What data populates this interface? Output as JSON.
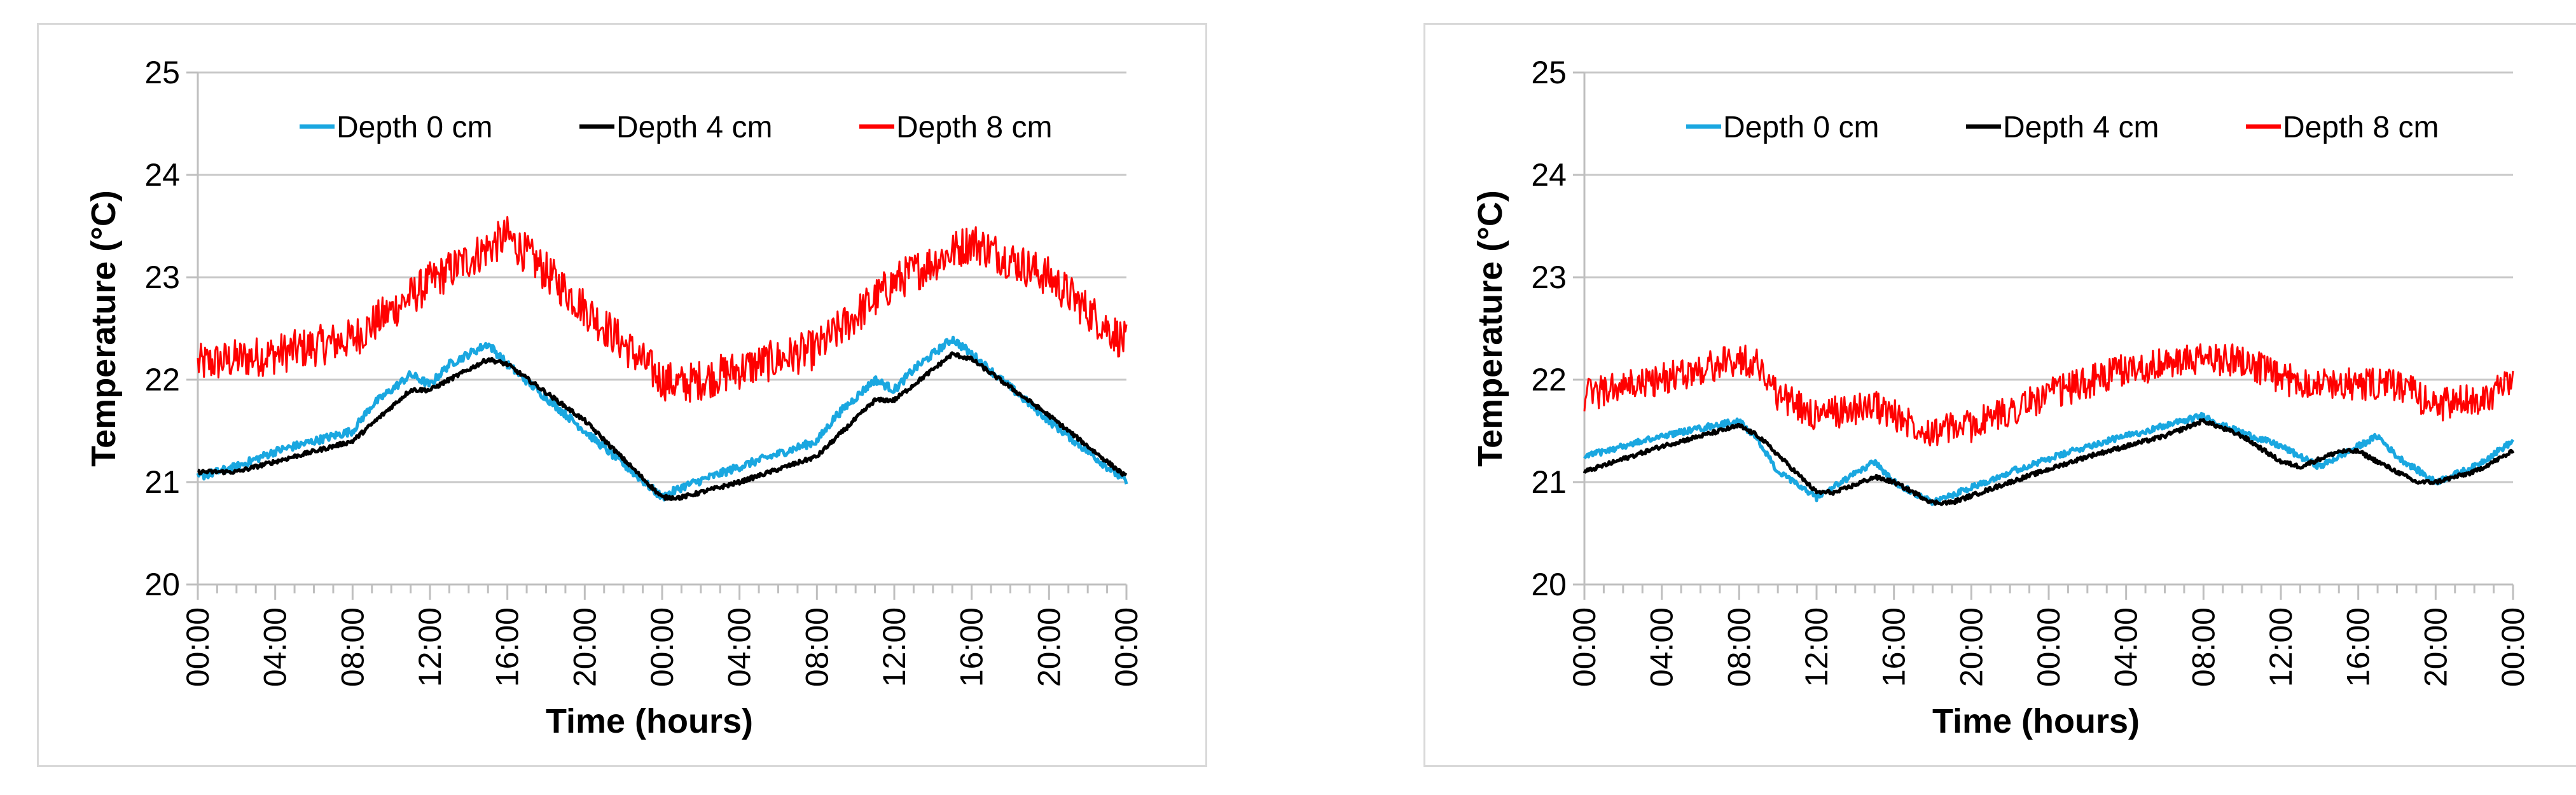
{
  "chart_data": [
    {
      "type": "line",
      "title": "",
      "xlabel": "Time (hours)",
      "ylabel": "Temperature (°C)",
      "ylim": [
        20,
        25
      ],
      "yticks": [
        "20",
        "21",
        "22",
        "23",
        "24",
        "25"
      ],
      "xlim": [
        0,
        48
      ],
      "xticks": [
        "00:00",
        "04:00",
        "08:00",
        "12:00",
        "16:00",
        "20:00",
        "00:00",
        "04:00",
        "08:00",
        "12:00",
        "16:00",
        "20:00",
        "00:00"
      ],
      "grid": true,
      "legend_position": "top",
      "series": [
        {
          "name": "Depth 0 cm",
          "color": "#1aa7e0",
          "noise": 0.04,
          "points": [
            [
              0,
              21.05
            ],
            [
              2,
              21.15
            ],
            [
              4,
              21.3
            ],
            [
              8,
              21.5
            ],
            [
              9,
              21.75
            ],
            [
              11,
              22.05
            ],
            [
              12,
              21.95
            ],
            [
              13,
              22.15
            ],
            [
              15,
              22.35
            ],
            [
              16,
              22.15
            ],
            [
              20,
              21.5
            ],
            [
              24,
              20.85
            ],
            [
              25,
              20.95
            ],
            [
              28,
              21.15
            ],
            [
              32,
              21.4
            ],
            [
              33,
              21.65
            ],
            [
              35,
              22.0
            ],
            [
              36,
              21.9
            ],
            [
              37,
              22.1
            ],
            [
              39,
              22.4
            ],
            [
              40,
              22.25
            ],
            [
              44,
              21.6
            ],
            [
              48,
              21.0
            ]
          ]
        },
        {
          "name": "Depth 4 cm",
          "color": "#000000",
          "noise": 0.02,
          "points": [
            [
              0,
              21.1
            ],
            [
              2,
              21.1
            ],
            [
              4,
              21.2
            ],
            [
              8,
              21.4
            ],
            [
              11,
              21.9
            ],
            [
              12,
              21.9
            ],
            [
              15,
              22.2
            ],
            [
              16,
              22.15
            ],
            [
              20,
              21.6
            ],
            [
              24,
              20.85
            ],
            [
              25,
              20.85
            ],
            [
              28,
              21.0
            ],
            [
              32,
              21.25
            ],
            [
              35,
              21.8
            ],
            [
              36,
              21.8
            ],
            [
              39,
              22.25
            ],
            [
              40,
              22.2
            ],
            [
              44,
              21.65
            ],
            [
              48,
              21.05
            ]
          ]
        },
        {
          "name": "Depth 8 cm",
          "color": "#ff0000",
          "noise": 0.2,
          "points": [
            [
              0,
              22.15
            ],
            [
              4,
              22.25
            ],
            [
              8,
              22.4
            ],
            [
              12,
              22.95
            ],
            [
              16,
              23.4
            ],
            [
              20,
              22.7
            ],
            [
              24,
              22.0
            ],
            [
              25,
              21.95
            ],
            [
              28,
              22.1
            ],
            [
              32,
              22.3
            ],
            [
              36,
              22.95
            ],
            [
              40,
              23.35
            ],
            [
              44,
              23.0
            ],
            [
              48,
              22.35
            ]
          ]
        }
      ]
    },
    {
      "type": "line",
      "title": "",
      "xlabel": "Time (hours)",
      "ylabel": "Temperature (°C)",
      "ylim": [
        20,
        25
      ],
      "yticks": [
        "20",
        "21",
        "22",
        "23",
        "24",
        "25"
      ],
      "xlim": [
        0,
        48
      ],
      "xticks": [
        "00:00",
        "04:00",
        "08:00",
        "12:00",
        "16:00",
        "20:00",
        "00:00",
        "04:00",
        "08:00",
        "12:00",
        "16:00",
        "20:00",
        "00:00"
      ],
      "grid": true,
      "legend_position": "top",
      "series": [
        {
          "name": "Depth 0 cm",
          "color": "#1aa7e0",
          "noise": 0.03,
          "points": [
            [
              0,
              21.25
            ],
            [
              4,
              21.45
            ],
            [
              8,
              21.6
            ],
            [
              9,
              21.4
            ],
            [
              10,
              21.1
            ],
            [
              12,
              20.85
            ],
            [
              15,
              21.2
            ],
            [
              16,
              21.0
            ],
            [
              18,
              20.8
            ],
            [
              22,
              21.1
            ],
            [
              26,
              21.35
            ],
            [
              30,
              21.55
            ],
            [
              32,
              21.65
            ],
            [
              33,
              21.55
            ],
            [
              36,
              21.35
            ],
            [
              38,
              21.15
            ],
            [
              40,
              21.35
            ],
            [
              41,
              21.45
            ],
            [
              42,
              21.25
            ],
            [
              44,
              21.0
            ],
            [
              46,
              21.15
            ],
            [
              48,
              21.4
            ]
          ]
        },
        {
          "name": "Depth 4 cm",
          "color": "#000000",
          "noise": 0.02,
          "points": [
            [
              0,
              21.1
            ],
            [
              4,
              21.35
            ],
            [
              8,
              21.55
            ],
            [
              9,
              21.45
            ],
            [
              12,
              20.9
            ],
            [
              13,
              20.9
            ],
            [
              15,
              21.05
            ],
            [
              16,
              21.0
            ],
            [
              18,
              20.8
            ],
            [
              19,
              20.8
            ],
            [
              22,
              21.0
            ],
            [
              26,
              21.25
            ],
            [
              30,
              21.45
            ],
            [
              32,
              21.6
            ],
            [
              34,
              21.45
            ],
            [
              36,
              21.2
            ],
            [
              37,
              21.15
            ],
            [
              39,
              21.3
            ],
            [
              40,
              21.3
            ],
            [
              42,
              21.1
            ],
            [
              43,
              21.0
            ],
            [
              44,
              21.0
            ],
            [
              46,
              21.1
            ],
            [
              48,
              21.3
            ]
          ]
        },
        {
          "name": "Depth 8 cm",
          "color": "#ff0000",
          "noise": 0.16,
          "points": [
            [
              0,
              21.85
            ],
            [
              4,
              22.0
            ],
            [
              8,
              22.2
            ],
            [
              9,
              22.15
            ],
            [
              10,
              21.85
            ],
            [
              12,
              21.65
            ],
            [
              15,
              21.75
            ],
            [
              16,
              21.65
            ],
            [
              18,
              21.5
            ],
            [
              20,
              21.55
            ],
            [
              24,
              21.85
            ],
            [
              28,
              22.1
            ],
            [
              32,
              22.2
            ],
            [
              34,
              22.2
            ],
            [
              36,
              22.0
            ],
            [
              40,
              21.95
            ],
            [
              42,
              21.95
            ],
            [
              44,
              21.75
            ],
            [
              46,
              21.8
            ],
            [
              48,
              21.95
            ]
          ]
        }
      ]
    }
  ]
}
